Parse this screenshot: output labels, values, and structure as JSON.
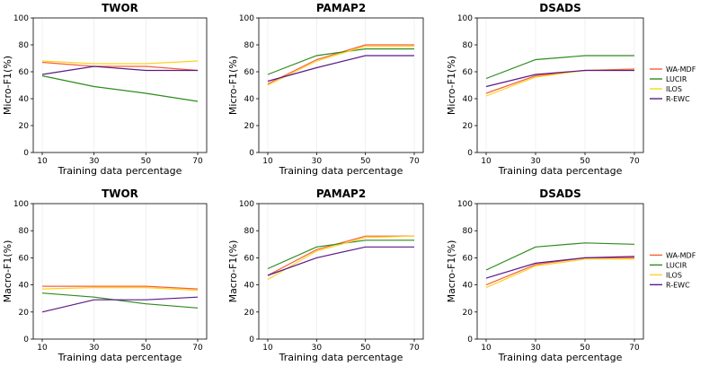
{
  "colors": {
    "WA-MDF": "#f4613a",
    "LUCIR": "#2e8b1f",
    "ILOS": "#ffd21f",
    "R-EWC": "#5b1a8b"
  },
  "chart_data": [
    {
      "type": "line",
      "title": "TWOR",
      "xlabel": "Training data percentage",
      "ylabel": "Micro-F1(%)",
      "x": [
        10,
        30,
        50,
        70
      ],
      "ylim": [
        0,
        100
      ],
      "yticks": [
        0,
        20,
        40,
        60,
        80,
        100
      ],
      "series": [
        {
          "name": "WA-MDF",
          "values": [
            67,
            64,
            64,
            61
          ]
        },
        {
          "name": "LUCIR",
          "values": [
            57,
            49,
            44,
            38
          ]
        },
        {
          "name": "ILOS",
          "values": [
            68,
            66,
            66,
            68
          ]
        },
        {
          "name": "R-EWC",
          "values": [
            58,
            64,
            61,
            61
          ]
        }
      ]
    },
    {
      "type": "line",
      "title": "PAMAP2",
      "xlabel": "Training data percentage",
      "ylabel": "Micro-F1(%)",
      "x": [
        10,
        30,
        50,
        70
      ],
      "ylim": [
        0,
        100
      ],
      "yticks": [
        0,
        20,
        40,
        60,
        80,
        100
      ],
      "series": [
        {
          "name": "WA-MDF",
          "values": [
            51,
            69,
            80,
            80
          ]
        },
        {
          "name": "LUCIR",
          "values": [
            58,
            72,
            77,
            77
          ]
        },
        {
          "name": "ILOS",
          "values": [
            50,
            68,
            79,
            79
          ]
        },
        {
          "name": "R-EWC",
          "values": [
            53,
            63,
            72,
            72
          ]
        }
      ]
    },
    {
      "type": "line",
      "title": "DSADS",
      "xlabel": "Training data percentage",
      "ylabel": "Micro-F1(%)",
      "x": [
        10,
        30,
        50,
        70
      ],
      "ylim": [
        0,
        100
      ],
      "yticks": [
        0,
        20,
        40,
        60,
        80,
        100
      ],
      "legend": [
        "WA-MDF",
        "LUCIR",
        "ILOS",
        "R-EWC"
      ],
      "series": [
        {
          "name": "WA-MDF",
          "values": [
            44,
            57,
            61,
            62
          ]
        },
        {
          "name": "LUCIR",
          "values": [
            55,
            69,
            72,
            72
          ]
        },
        {
          "name": "ILOS",
          "values": [
            42,
            56,
            61,
            61
          ]
        },
        {
          "name": "R-EWC",
          "values": [
            49,
            58,
            61,
            61
          ]
        }
      ]
    },
    {
      "type": "line",
      "title": "TWOR",
      "xlabel": "Training data percentage",
      "ylabel": "Macro-F1(%)",
      "x": [
        10,
        30,
        50,
        70
      ],
      "ylim": [
        0,
        100
      ],
      "yticks": [
        0,
        20,
        40,
        60,
        80,
        100
      ],
      "series": [
        {
          "name": "WA-MDF",
          "values": [
            39,
            39,
            39,
            37
          ]
        },
        {
          "name": "LUCIR",
          "values": [
            34,
            31,
            26,
            23
          ]
        },
        {
          "name": "ILOS",
          "values": [
            37,
            38,
            38,
            36
          ]
        },
        {
          "name": "R-EWC",
          "values": [
            20,
            29,
            29,
            31
          ]
        }
      ]
    },
    {
      "type": "line",
      "title": "PAMAP2",
      "xlabel": "Training data percentage",
      "ylabel": "Macro-F1(%)",
      "x": [
        10,
        30,
        50,
        70
      ],
      "ylim": [
        0,
        100
      ],
      "yticks": [
        0,
        20,
        40,
        60,
        80,
        100
      ],
      "series": [
        {
          "name": "WA-MDF",
          "values": [
            47,
            66,
            76,
            76
          ]
        },
        {
          "name": "LUCIR",
          "values": [
            52,
            68,
            73,
            73
          ]
        },
        {
          "name": "ILOS",
          "values": [
            44,
            65,
            75,
            76
          ]
        },
        {
          "name": "R-EWC",
          "values": [
            47,
            60,
            68,
            68
          ]
        }
      ]
    },
    {
      "type": "line",
      "title": "DSADS",
      "xlabel": "Training data percentage",
      "ylabel": "Macro-F1(%)",
      "x": [
        10,
        30,
        50,
        70
      ],
      "ylim": [
        0,
        100
      ],
      "yticks": [
        0,
        20,
        40,
        60,
        80,
        100
      ],
      "legend": [
        "WA-MDF",
        "LUCIR",
        "ILOS",
        "R-EWC"
      ],
      "series": [
        {
          "name": "WA-MDF",
          "values": [
            40,
            55,
            60,
            60
          ]
        },
        {
          "name": "LUCIR",
          "values": [
            51,
            68,
            71,
            70
          ]
        },
        {
          "name": "ILOS",
          "values": [
            38,
            54,
            59,
            59
          ]
        },
        {
          "name": "R-EWC",
          "values": [
            45,
            56,
            60,
            61
          ]
        }
      ]
    }
  ]
}
